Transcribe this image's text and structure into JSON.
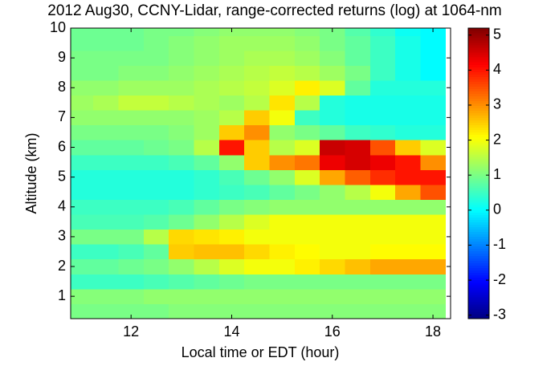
{
  "chart_data": {
    "type": "heatmap",
    "title": "2012 Aug30, CCNY-Lidar, range-corrected returns (log) at 1064-nm",
    "xlabel": "Local time or EDT (hour)",
    "ylabel": "Altitude (km)",
    "x": [
      11,
      11.5,
      12,
      12.5,
      13,
      13.5,
      14,
      14.5,
      15,
      15.5,
      16,
      16.5,
      17,
      17.5,
      18
    ],
    "y": [
      0.5,
      1,
      1.5,
      2,
      2.5,
      3,
      3.5,
      4,
      4.5,
      5,
      5.5,
      6,
      6.5,
      7,
      7.5,
      8,
      8.5,
      9,
      9.5,
      10
    ],
    "z": [
      [
        1,
        1,
        1,
        1,
        1.1,
        1.1,
        1.1,
        1.1,
        1.1,
        1.1,
        1.1,
        1.1,
        1.1,
        1.1,
        1.1
      ],
      [
        1.1,
        1.1,
        1.1,
        1.2,
        1.2,
        1.2,
        1.2,
        1.2,
        1.2,
        1.2,
        1.2,
        1.2,
        1.2,
        1.2,
        1.2
      ],
      [
        0.5,
        0.5,
        0.5,
        0.6,
        0.7,
        0.8,
        0.9,
        1,
        1,
        1,
        1,
        1,
        1,
        1,
        1
      ],
      [
        0.8,
        0.8,
        0.9,
        1,
        1.2,
        1.5,
        1.8,
        2,
        2,
        2.2,
        2.4,
        2.6,
        2.8,
        2.8,
        2.8
      ],
      [
        0.5,
        0.5,
        0.6,
        0.8,
        2.5,
        2.6,
        2.6,
        2.4,
        2.2,
        2.1,
        2,
        2,
        2.1,
        2.1,
        2.1
      ],
      [
        1,
        1,
        1,
        1.5,
        2.4,
        2.3,
        2.2,
        2,
        2,
        2,
        2,
        2,
        2,
        2,
        2
      ],
      [
        0.6,
        0.6,
        0.6,
        0.7,
        0.9,
        1.2,
        1.5,
        1.8,
        2,
        2,
        2,
        2,
        2,
        2,
        2
      ],
      [
        0.5,
        0.5,
        0.5,
        0.5,
        0.6,
        0.8,
        1,
        1.1,
        1.2,
        1.2,
        1.2,
        1.2,
        1.2,
        1.2,
        1.2
      ],
      [
        0.3,
        0.3,
        0.3,
        0.3,
        0.3,
        0.4,
        0.5,
        0.6,
        0.8,
        1,
        1.2,
        1.5,
        2,
        2.8,
        3.5
      ],
      [
        0.3,
        0.3,
        0.3,
        0.3,
        0.3,
        0.4,
        0.6,
        0.9,
        1.2,
        1.8,
        2.8,
        3.4,
        3.8,
        4,
        4
      ],
      [
        0.5,
        0.5,
        0.5,
        0.5,
        0.6,
        0.8,
        1.2,
        2.5,
        3,
        3.2,
        4.3,
        4.5,
        4.3,
        4,
        3
      ],
      [
        0.8,
        0.8,
        0.8,
        0.9,
        1,
        1.5,
        4,
        2.5,
        1.5,
        1.8,
        4.6,
        4.5,
        3.5,
        2.5,
        1.8
      ],
      [
        1,
        1,
        1,
        1,
        1.1,
        1.3,
        2.5,
        3,
        1.2,
        1,
        0.8,
        0.5,
        0.4,
        0.3,
        0.3
      ],
      [
        1.2,
        1.2,
        1.2,
        1.2,
        1.2,
        1.3,
        1.5,
        2.5,
        2,
        0.5,
        0.3,
        0.2,
        0.2,
        0.2,
        0.2
      ],
      [
        1.3,
        1.4,
        1.6,
        1.6,
        1.5,
        1.4,
        1.3,
        1.5,
        2.3,
        1.5,
        0.3,
        0.2,
        0.2,
        0.2,
        0.2
      ],
      [
        1.2,
        1.2,
        1.3,
        1.3,
        1.3,
        1.4,
        1.5,
        1.6,
        1.8,
        2.2,
        1.8,
        0.8,
        0.3,
        0.3,
        0.3
      ],
      [
        1,
        1,
        1.1,
        1.1,
        1.2,
        1.3,
        1.4,
        1.5,
        1.6,
        1.5,
        1.3,
        1,
        0.5,
        0.2,
        0
      ],
      [
        1,
        1,
        1,
        1,
        1.1,
        1.2,
        1.3,
        1.4,
        1.4,
        1.3,
        1.1,
        0.8,
        0.5,
        0.2,
        0
      ],
      [
        0.9,
        0.9,
        0.9,
        1,
        1.1,
        1.2,
        1.3,
        1.3,
        1.3,
        1.2,
        1,
        0.8,
        0.5,
        0.2,
        0
      ],
      [
        0.9,
        0.9,
        0.9,
        1,
        1,
        1.1,
        1.2,
        1.2,
        1.2,
        1.1,
        1,
        0.7,
        0.4,
        0.1,
        0
      ]
    ],
    "xlim": [
      10.8,
      18.35
    ],
    "xticks": [
      12,
      14,
      16,
      18
    ],
    "ylim": [
      0.25,
      10
    ],
    "yticks": [
      1,
      2,
      3,
      4,
      5,
      6,
      7,
      8,
      9,
      10
    ],
    "clim": [
      -3.1,
      5.2
    ],
    "cticks": [
      -3,
      -2,
      -1,
      0,
      1,
      2,
      3,
      4,
      5
    ],
    "colormap": "jet"
  }
}
